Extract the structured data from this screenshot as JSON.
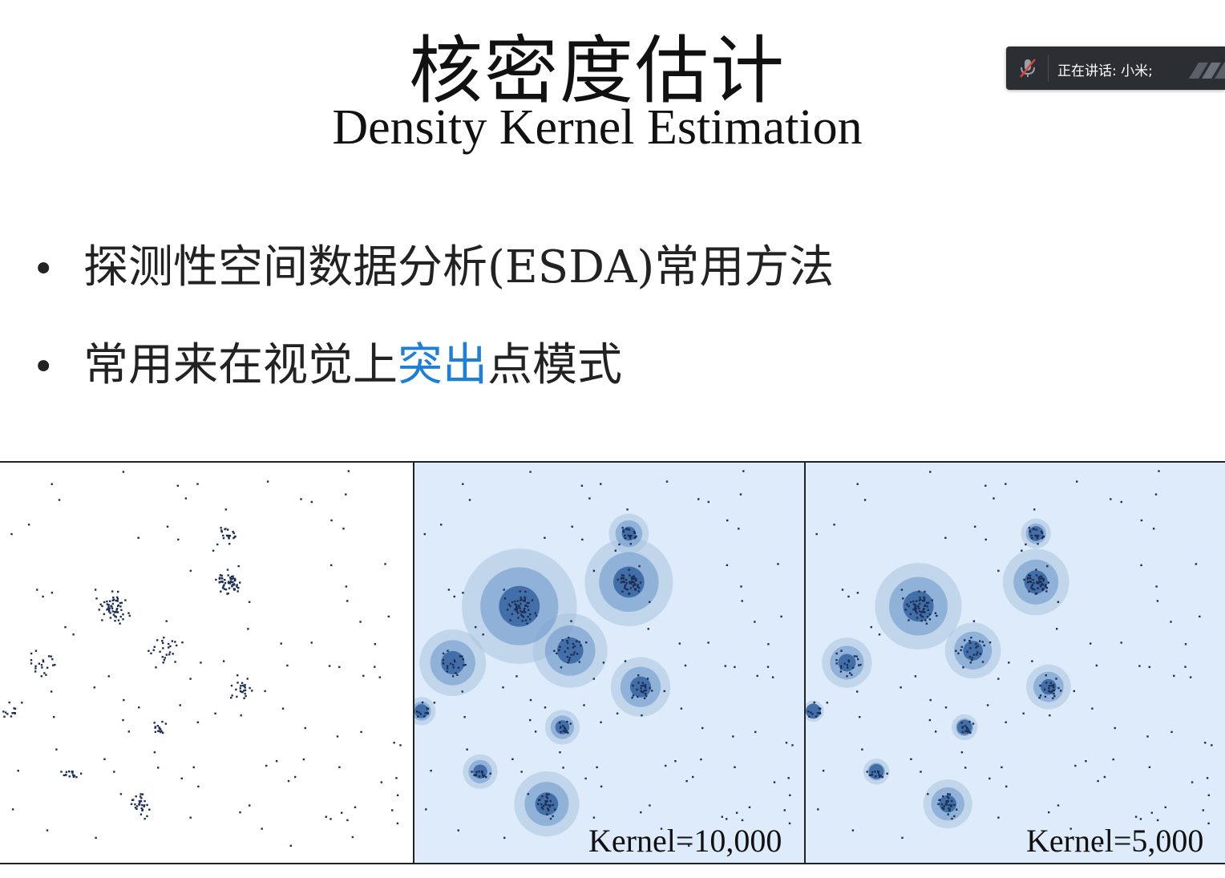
{
  "slide": {
    "title_cn": "核密度估计",
    "title_en": "Density Kernel Estimation",
    "bullets": [
      {
        "pre": "探测性空间数据分析(ESDA)常用方法",
        "hl": "",
        "post": ""
      },
      {
        "pre": "常用来在视觉上",
        "hl": "突出",
        "post": "点模式"
      }
    ],
    "bullet_glyph": "•",
    "highlight_color": "#1e7fd6"
  },
  "speaking": {
    "text": "正在讲话: 小米;",
    "mic_icon": "mic-muted-icon",
    "logo_icon": "app-logo-icon"
  },
  "panels": {
    "kernel_labels": [
      "Kernel=10,000",
      "Kernel=5,000"
    ],
    "point_color": "#1d2f55",
    "density_colors": [
      "#a9c3df",
      "#6f9acb",
      "#2f5f9c"
    ],
    "panel_bg": "#deebfb"
  }
}
